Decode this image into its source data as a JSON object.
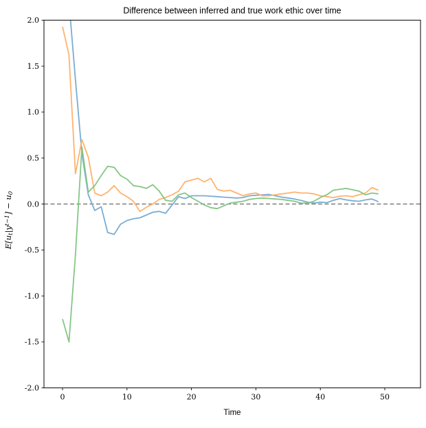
{
  "figure": {
    "background": "#ffffff",
    "spine_color": "#000000"
  },
  "chart_data": {
    "type": "line",
    "title": "Difference between inferred and true work ethic over time",
    "xlabel": "Time",
    "ylabel_plain": "E[u_t|y^(t-1)] - u_0",
    "ylabel_parts": [
      {
        "text": "E[u"
      },
      {
        "sub": "t"
      },
      {
        "text": "|y"
      },
      {
        "sup": "t−1"
      },
      {
        "text": "] − u"
      },
      {
        "sub": "0"
      }
    ],
    "xlim": [
      -2.88,
      55.54
    ],
    "ylim": [
      -2.0,
      2.0
    ],
    "x_ticks": [
      0,
      10,
      20,
      30,
      40,
      50
    ],
    "y_ticks": [
      -2.0,
      -1.5,
      -1.0,
      -0.5,
      0.0,
      0.5,
      1.0,
      1.5,
      2.0
    ],
    "grid": false,
    "legend": null,
    "reference_line": {
      "y": 0,
      "color": "#7f7f7f",
      "dash": [
        6,
        3.5
      ],
      "width": 1.6
    },
    "line_width": 1.8,
    "x": [
      0,
      1,
      2,
      3,
      4,
      5,
      6,
      7,
      8,
      9,
      10,
      11,
      12,
      13,
      14,
      15,
      16,
      17,
      18,
      19,
      20,
      21,
      22,
      23,
      24,
      25,
      26,
      27,
      28,
      29,
      30,
      31,
      32,
      33,
      34,
      35,
      36,
      37,
      38,
      39,
      40,
      41,
      42,
      43,
      44,
      45,
      46,
      47,
      48,
      49
    ],
    "series": [
      {
        "name": "series-blue",
        "color": "#79add2",
        "base_color": "#1f77b4",
        "values": [
          2.9,
          2.2,
          1.35,
          0.55,
          0.1,
          -0.07,
          -0.03,
          -0.31,
          -0.33,
          -0.22,
          -0.18,
          -0.16,
          -0.15,
          -0.12,
          -0.09,
          -0.08,
          -0.1,
          -0.01,
          0.08,
          0.06,
          0.09,
          0.09,
          0.09,
          0.085,
          0.08,
          0.075,
          0.07,
          0.065,
          0.07,
          0.09,
          0.095,
          0.1,
          0.105,
          0.09,
          0.075,
          0.065,
          0.055,
          0.04,
          0.02,
          0.01,
          0.02,
          0.015,
          0.04,
          0.06,
          0.045,
          0.035,
          0.03,
          0.045,
          0.055,
          0.025
        ]
      },
      {
        "name": "series-orange",
        "color": "#ffb26e",
        "base_color": "#ff7f0e",
        "values": [
          1.93,
          1.62,
          0.33,
          0.7,
          0.51,
          0.12,
          0.09,
          0.13,
          0.2,
          0.12,
          0.08,
          0.03,
          -0.08,
          -0.035,
          0.0,
          0.05,
          0.07,
          0.1,
          0.14,
          0.24,
          0.26,
          0.28,
          0.24,
          0.28,
          0.16,
          0.14,
          0.15,
          0.12,
          0.09,
          0.11,
          0.12,
          0.09,
          0.09,
          0.1,
          0.11,
          0.12,
          0.13,
          0.12,
          0.12,
          0.11,
          0.09,
          0.08,
          0.07,
          0.085,
          0.09,
          0.08,
          0.1,
          0.12,
          0.18,
          0.15
        ]
      },
      {
        "name": "series-green",
        "color": "#85c685",
        "base_color": "#2ca02c",
        "values": [
          -1.25,
          -1.5,
          -0.55,
          0.62,
          0.13,
          0.2,
          0.31,
          0.41,
          0.4,
          0.31,
          0.27,
          0.2,
          0.19,
          0.17,
          0.21,
          0.14,
          0.04,
          0.03,
          0.1,
          0.12,
          0.07,
          0.03,
          -0.01,
          -0.04,
          -0.05,
          -0.02,
          0.01,
          0.02,
          0.03,
          0.05,
          0.06,
          0.065,
          0.06,
          0.055,
          0.05,
          0.04,
          0.03,
          0.01,
          0.01,
          0.03,
          0.07,
          0.1,
          0.15,
          0.16,
          0.17,
          0.155,
          0.14,
          0.1,
          0.12,
          0.11
        ]
      }
    ]
  }
}
